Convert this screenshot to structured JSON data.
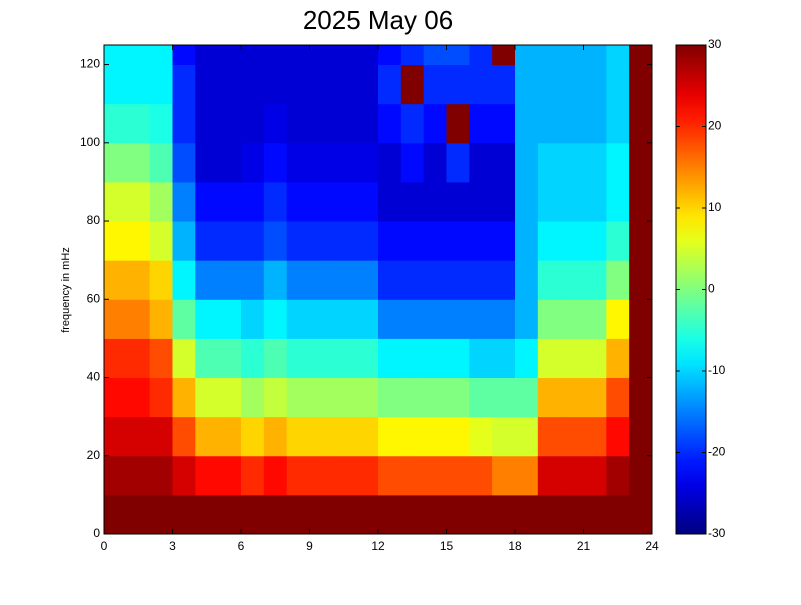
{
  "chart_data": {
    "type": "heatmap",
    "title": "2025 May 06",
    "ylabel": "frequency in mHz",
    "colormap": "jet",
    "xbins": [
      0,
      1,
      2,
      3,
      4,
      5,
      6,
      7,
      8,
      9,
      10,
      11,
      12,
      13,
      14,
      15,
      16,
      17,
      18,
      19,
      20,
      21,
      22,
      23,
      24
    ],
    "ybins": [
      0,
      10,
      20,
      30,
      40,
      50,
      60,
      70,
      80,
      90,
      100,
      110,
      120,
      125
    ],
    "z": [
      [
        30,
        28,
        25,
        22,
        20,
        15,
        12,
        8,
        5,
        0,
        -5,
        -8,
        -8
      ],
      [
        30,
        28,
        25,
        22,
        20,
        15,
        12,
        8,
        5,
        0,
        -5,
        -8,
        -8
      ],
      [
        30,
        28,
        25,
        20,
        18,
        12,
        10,
        5,
        2,
        -3,
        -6,
        -8,
        -8
      ],
      [
        30,
        25,
        18,
        12,
        5,
        -2,
        -8,
        -12,
        -15,
        -18,
        -20,
        -20,
        -22
      ],
      [
        30,
        22,
        12,
        5,
        -3,
        -8,
        -15,
        -20,
        -22,
        -25,
        -25,
        -25,
        -25
      ],
      [
        30,
        22,
        12,
        5,
        -3,
        -8,
        -15,
        -20,
        -22,
        -25,
        -25,
        -25,
        -25
      ],
      [
        30,
        20,
        10,
        2,
        -5,
        -10,
        -15,
        -20,
        -22,
        -24,
        -25,
        -25,
        -25
      ],
      [
        30,
        22,
        12,
        4,
        -3,
        -8,
        -12,
        -18,
        -20,
        -22,
        -24,
        -25,
        -25
      ],
      [
        30,
        20,
        10,
        2,
        -5,
        -10,
        -15,
        -20,
        -22,
        -24,
        -25,
        -25,
        -25
      ],
      [
        30,
        20,
        10,
        2,
        -5,
        -10,
        -15,
        -20,
        -22,
        -24,
        -25,
        -25,
        -25
      ],
      [
        30,
        20,
        10,
        2,
        -5,
        -10,
        -15,
        -20,
        -22,
        -24,
        -25,
        -25,
        -25
      ],
      [
        30,
        20,
        10,
        2,
        -5,
        -10,
        -15,
        -20,
        -22,
        -24,
        -25,
        -25,
        -25
      ],
      [
        30,
        18,
        8,
        0,
        -8,
        -15,
        -20,
        -22,
        -25,
        -25,
        -22,
        -20,
        -22
      ],
      [
        30,
        18,
        8,
        0,
        -8,
        -15,
        -20,
        -22,
        -25,
        -22,
        -20,
        30,
        -20
      ],
      [
        30,
        18,
        8,
        0,
        -8,
        -15,
        -20,
        -22,
        -25,
        -25,
        -22,
        -20,
        -18
      ],
      [
        30,
        18,
        8,
        0,
        -8,
        -15,
        -20,
        -22,
        -25,
        -20,
        30,
        -20,
        -18
      ],
      [
        30,
        18,
        6,
        -2,
        -10,
        -15,
        -20,
        -22,
        -25,
        -25,
        -22,
        -20,
        -20
      ],
      [
        30,
        15,
        5,
        -2,
        -10,
        -15,
        -20,
        -22,
        -25,
        -25,
        -22,
        -20,
        30
      ],
      [
        30,
        15,
        5,
        -2,
        -8,
        -12,
        -12,
        -12,
        -12,
        -12,
        -12,
        -12,
        -12
      ],
      [
        30,
        25,
        18,
        12,
        5,
        0,
        -5,
        -8,
        -10,
        -10,
        -12,
        -12,
        -12
      ],
      [
        30,
        25,
        18,
        12,
        5,
        0,
        -5,
        -8,
        -10,
        -10,
        -12,
        -12,
        -12
      ],
      [
        30,
        25,
        18,
        12,
        5,
        0,
        -5,
        -8,
        -10,
        -10,
        -12,
        -12,
        -12
      ],
      [
        30,
        28,
        22,
        18,
        12,
        8,
        0,
        -5,
        -8,
        -8,
        -10,
        -10,
        -10
      ],
      [
        30,
        30,
        30,
        30,
        30,
        30,
        30,
        30,
        30,
        30,
        30,
        30,
        30
      ]
    ],
    "xlim": [
      0,
      24
    ],
    "xticks": [
      0,
      3,
      6,
      9,
      12,
      15,
      18,
      21,
      24
    ],
    "ylim": [
      0,
      125
    ],
    "yticks": [
      0,
      20,
      40,
      60,
      80,
      100,
      120
    ],
    "clim": [
      -30,
      30
    ],
    "cticks": [
      -30,
      -20,
      -10,
      0,
      10,
      20,
      30
    ]
  }
}
